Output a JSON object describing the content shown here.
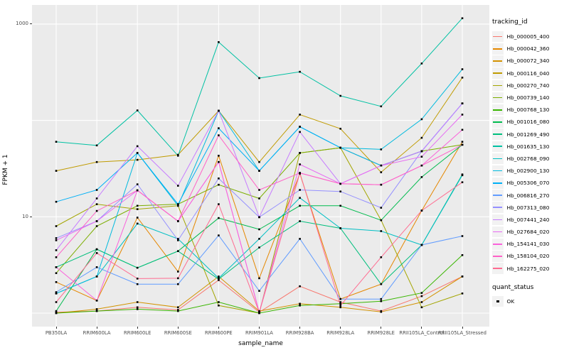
{
  "chart_data": {
    "type": "line",
    "xlabel": "sample_name",
    "ylabel": "FPKM + 1",
    "y_scale": "log10",
    "ylim": [
      1,
      1300
    ],
    "grid": true,
    "y_gridlines": [
      1,
      10,
      100,
      1000
    ],
    "y_ticks": [
      {
        "label": "1000",
        "value": 1000
      },
      {
        "label": "10",
        "value": 10
      }
    ],
    "categories": [
      "PB350LA",
      "RRIM600LA",
      "RRIM600LE",
      "RRIM600SE",
      "RRIM600PE",
      "RRIM901LA",
      "RRIM928BA",
      "RRIM928LA",
      "RRIM928LE",
      "RRII105LA_Control",
      "RRII105LA_Stressed"
    ],
    "legend": {
      "position": "right",
      "color_title": "tracking_id",
      "shape_title": "quant_status",
      "shape_items": [
        {
          "label": "OK",
          "shape": "filled-square",
          "color": "#000000"
        }
      ]
    },
    "point_marker": {
      "shape": "square",
      "color": "#000000",
      "size": 2.6
    },
    "colors": {
      "panel_bg": "#EBEBEB",
      "grid": "#FFFFFF",
      "legend_key_bg": "#F2F2F2",
      "tick_text": "#4D4D4D",
      "axis_tick": "#333333"
    },
    "series": [
      {
        "name": "Hb_000005_400",
        "color": "#F8766D",
        "values": [
          1.02,
          1.05,
          1.15,
          1.08,
          2.2,
          1.02,
          1.9,
          1.3,
          1.05,
          1.5,
          2.4
        ]
      },
      {
        "name": "Hb_000042_360",
        "color": "#E58700",
        "values": [
          2.1,
          1.35,
          9.8,
          2.7,
          43,
          2.3,
          28,
          1.4,
          2.0,
          11.6,
          60
        ]
      },
      {
        "name": "Hb_000072_340",
        "color": "#D39200",
        "values": [
          1.0,
          1.1,
          1.3,
          1.15,
          2.4,
          1.05,
          1.25,
          1.15,
          1.03,
          1.3,
          2.4
        ]
      },
      {
        "name": "Hb_000116_040",
        "color": "#C09B00",
        "values": [
          30,
          37,
          39,
          44,
          126,
          37,
          115,
          82,
          29,
          66,
          278
        ]
      },
      {
        "name": "Hb_000270_740",
        "color": "#A3A500",
        "values": [
          8.0,
          13.5,
          12,
          13,
          1.2,
          1.0,
          46,
          52,
          9.2,
          1.15,
          1.6
        ]
      },
      {
        "name": "Hb_000739_140",
        "color": "#7CAE00",
        "values": [
          2.6,
          8.0,
          13,
          13.5,
          21.5,
          15.5,
          46,
          52,
          34,
          48,
          56
        ]
      },
      {
        "name": "Hb_000768_130",
        "color": "#39B600",
        "values": [
          1.0,
          1.05,
          1.1,
          1.05,
          1.3,
          1.0,
          1.2,
          1.25,
          1.33,
          1.62,
          4.0
        ]
      },
      {
        "name": "Hb_001016_080",
        "color": "#00BB4E",
        "values": [
          1.05,
          4.6,
          2.95,
          4.4,
          9.7,
          7.4,
          13,
          13,
          9.2,
          25.8,
          56
        ]
      },
      {
        "name": "Hb_001269_490",
        "color": "#00BF7D",
        "values": [
          3.0,
          4.6,
          2.95,
          4.4,
          2.25,
          4.8,
          9.0,
          7.6,
          2.0,
          5.1,
          27.5
        ]
      },
      {
        "name": "Hb_001635_130",
        "color": "#00C1A3",
        "values": [
          60,
          55,
          127,
          43,
          650,
          275,
          320,
          180,
          140,
          390,
          1150
        ]
      },
      {
        "name": "Hb_002768_090",
        "color": "#00BFC4",
        "values": [
          1.6,
          2.4,
          8.5,
          5.9,
          2.3,
          5.9,
          15.7,
          7.6,
          7.1,
          5.1,
          27
        ]
      },
      {
        "name": "Hb_002900_130",
        "color": "#00BADE",
        "values": [
          1.6,
          2.4,
          46,
          13,
          126,
          30,
          86,
          52,
          50,
          103,
          340
        ]
      },
      {
        "name": "Hb_005306_070",
        "color": "#00B0F6",
        "values": [
          14.3,
          19,
          46,
          13.5,
          83,
          30,
          86,
          52,
          34,
          48,
          150
        ]
      },
      {
        "name": "Hb_006816_270",
        "color": "#619CFF",
        "values": [
          1.65,
          3.0,
          2.0,
          2.0,
          6.4,
          1.7,
          5.9,
          1.4,
          1.4,
          5.1,
          6.3
        ]
      },
      {
        "name": "Hb_007313_080",
        "color": "#9590FF",
        "values": [
          6.0,
          9.0,
          21.7,
          5.7,
          25,
          9.9,
          19,
          18.3,
          12.4,
          48,
          150
        ]
      },
      {
        "name": "Hb_007441_240",
        "color": "#C77CFF",
        "values": [
          4.5,
          15.5,
          54,
          21,
          126,
          9.9,
          76,
          22,
          34,
          48,
          150
        ]
      },
      {
        "name": "Hb_027684_020",
        "color": "#E76BF3",
        "values": [
          5.7,
          9.0,
          18.8,
          9.0,
          37,
          1.02,
          35,
          22,
          34,
          42,
          115
        ]
      },
      {
        "name": "Hb_154141_030",
        "color": "#FA62DB",
        "values": [
          3.0,
          1.35,
          18.8,
          9.0,
          37,
          1.02,
          28.5,
          22,
          21.5,
          34,
          80
        ]
      },
      {
        "name": "Hb_158104_020",
        "color": "#FF61C7",
        "values": [
          3.8,
          11.5,
          18.8,
          9.0,
          70,
          19,
          28.5,
          22,
          21.5,
          34,
          56
        ]
      },
      {
        "name": "Hb_162275_020",
        "color": "#FF6C91",
        "values": [
          1.3,
          4.2,
          2.28,
          2.3,
          13.5,
          1.02,
          28.5,
          1.2,
          3.8,
          11.6,
          22.8
        ]
      }
    ]
  }
}
